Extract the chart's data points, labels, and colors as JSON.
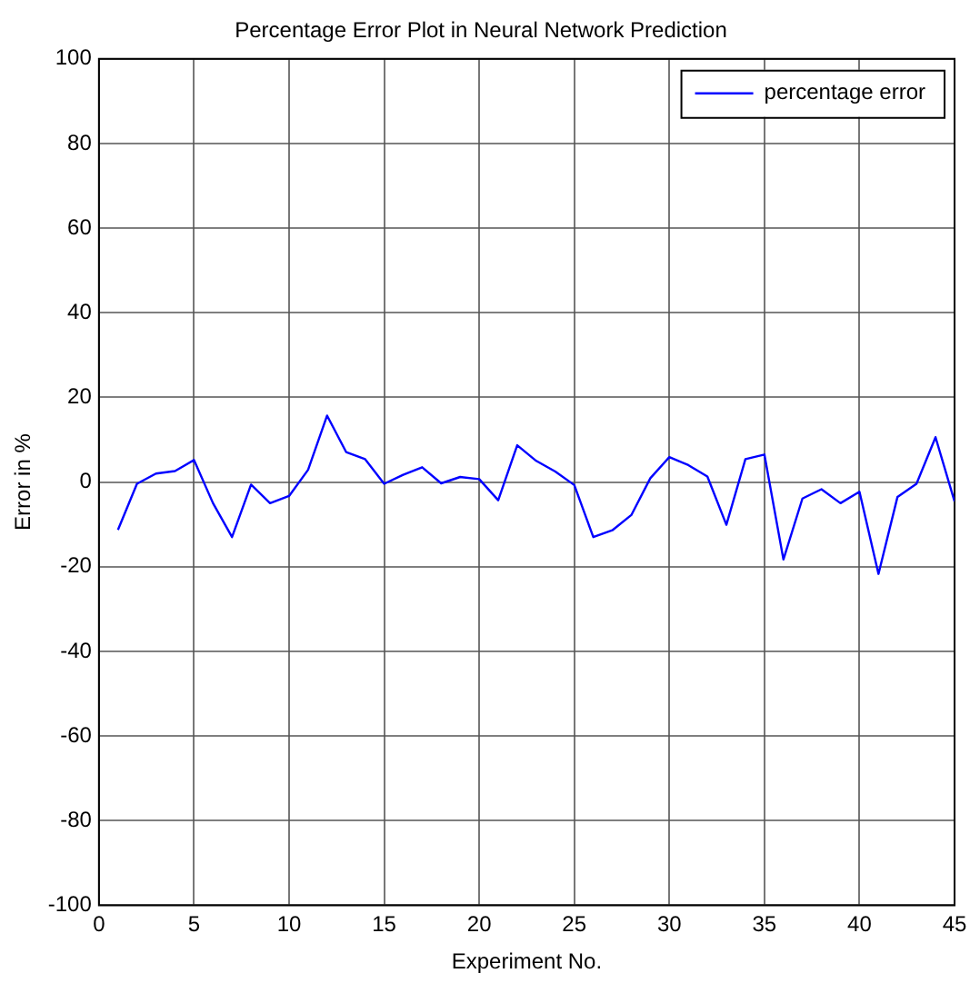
{
  "chart_data": {
    "type": "line",
    "title": "Percentage Error Plot in Neural Network Prediction",
    "xlabel": "Experiment No.",
    "ylabel": "Error in %",
    "x": [
      1,
      2,
      3,
      4,
      5,
      6,
      7,
      8,
      9,
      10,
      11,
      12,
      13,
      14,
      15,
      16,
      17,
      18,
      19,
      20,
      21,
      22,
      23,
      24,
      25,
      26,
      27,
      28,
      29,
      30,
      31,
      32,
      33,
      34,
      35,
      36,
      37,
      38,
      39,
      40,
      41,
      42,
      43,
      44,
      45
    ],
    "series": [
      {
        "name": "percentage error",
        "color": "#0000ff",
        "values": [
          -11.3,
          -0.4,
          2,
          2.6,
          5.2,
          -5,
          -13,
          -0.6,
          -5,
          -3.3,
          2.9,
          15.7,
          7.1,
          5.4,
          -0.4,
          1.7,
          3.5,
          -0.3,
          1.2,
          0.7,
          -4.3,
          8.7,
          5,
          2.5,
          -0.7,
          -13,
          -11.4,
          -7.8,
          0.9,
          5.9,
          4,
          1.3,
          -10.1,
          5.4,
          6.5,
          -18.3,
          -3.9,
          -1.7,
          -5,
          -2.3,
          -21.7,
          -3.5,
          -0.4,
          10.6,
          -4.6
        ]
      }
    ],
    "xlim": [
      0,
      45
    ],
    "xticks": [
      0,
      5,
      10,
      15,
      20,
      25,
      30,
      35,
      40,
      45
    ],
    "ylim": [
      -100,
      100
    ],
    "yticks": [
      -100,
      -80,
      -60,
      -40,
      -20,
      0,
      20,
      40,
      60,
      80,
      100
    ],
    "grid": true,
    "legend": "top right",
    "marker": "none",
    "line_style": "solid"
  }
}
